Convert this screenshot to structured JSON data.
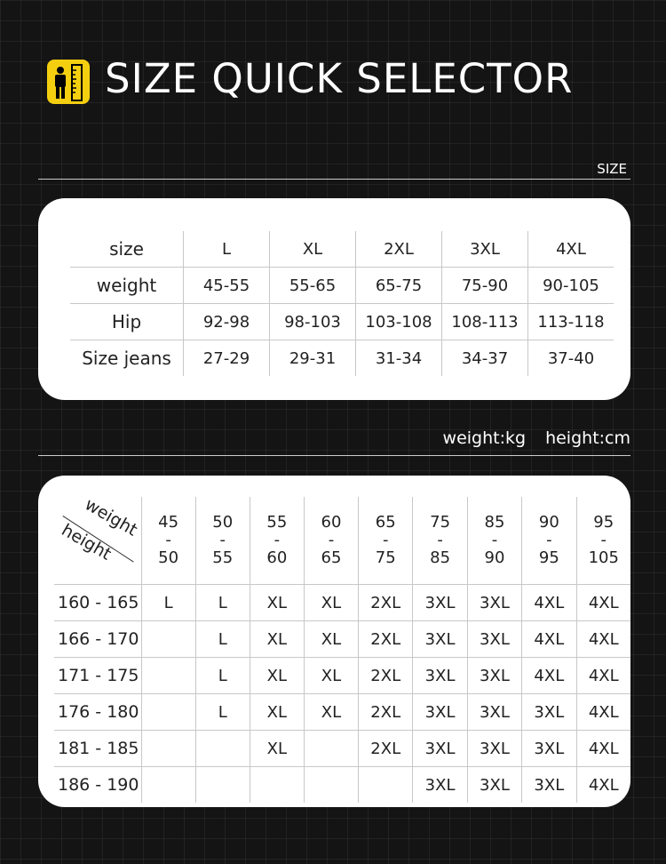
{
  "header": {
    "title": "SIZE QUICK SELECTOR",
    "icon": "person-ruler-icon",
    "accent": "#f4cf10"
  },
  "size_label": "SIZE",
  "table1": {
    "rows": [
      [
        "size",
        "L",
        "XL",
        "2XL",
        "3XL",
        "4XL"
      ],
      [
        "weight",
        "45-55",
        "55-65",
        "65-75",
        "75-90",
        "90-105"
      ],
      [
        "Hip",
        "92-98",
        "98-103",
        "103-108",
        "108-113",
        "113-118"
      ],
      [
        "Size jeans",
        "27-29",
        "29-31",
        "31-34",
        "34-37",
        "37-40"
      ]
    ]
  },
  "units": {
    "weight": "weight:kg",
    "height": "height:cm"
  },
  "table2": {
    "corner_top": "weight",
    "corner_bottom": "height",
    "weights": [
      [
        "45",
        "-",
        "50"
      ],
      [
        "50",
        "-",
        "55"
      ],
      [
        "55",
        "-",
        "60"
      ],
      [
        "60",
        "-",
        "65"
      ],
      [
        "65",
        "-",
        "75"
      ],
      [
        "75",
        "-",
        "85"
      ],
      [
        "85",
        "-",
        "90"
      ],
      [
        "90",
        "-",
        "95"
      ],
      [
        "95",
        "-",
        "105"
      ]
    ],
    "rows": [
      [
        "160 - 165",
        "L",
        "L",
        "XL",
        "XL",
        "2XL",
        "3XL",
        "3XL",
        "4XL",
        "4XL"
      ],
      [
        "166 - 170",
        "",
        "L",
        "XL",
        "XL",
        "2XL",
        "3XL",
        "3XL",
        "4XL",
        "4XL"
      ],
      [
        "171 - 175",
        "",
        "L",
        "XL",
        "XL",
        "2XL",
        "3XL",
        "3XL",
        "4XL",
        "4XL"
      ],
      [
        "176 - 180",
        "",
        "L",
        "XL",
        "XL",
        "2XL",
        "3XL",
        "3XL",
        "3XL",
        "4XL"
      ],
      [
        "181 - 185",
        "",
        "",
        "XL",
        "",
        "2XL",
        "3XL",
        "3XL",
        "3XL",
        "4XL"
      ],
      [
        "186 - 190",
        "",
        "",
        "",
        "",
        "",
        "3XL",
        "3XL",
        "3XL",
        "4XL"
      ]
    ]
  }
}
